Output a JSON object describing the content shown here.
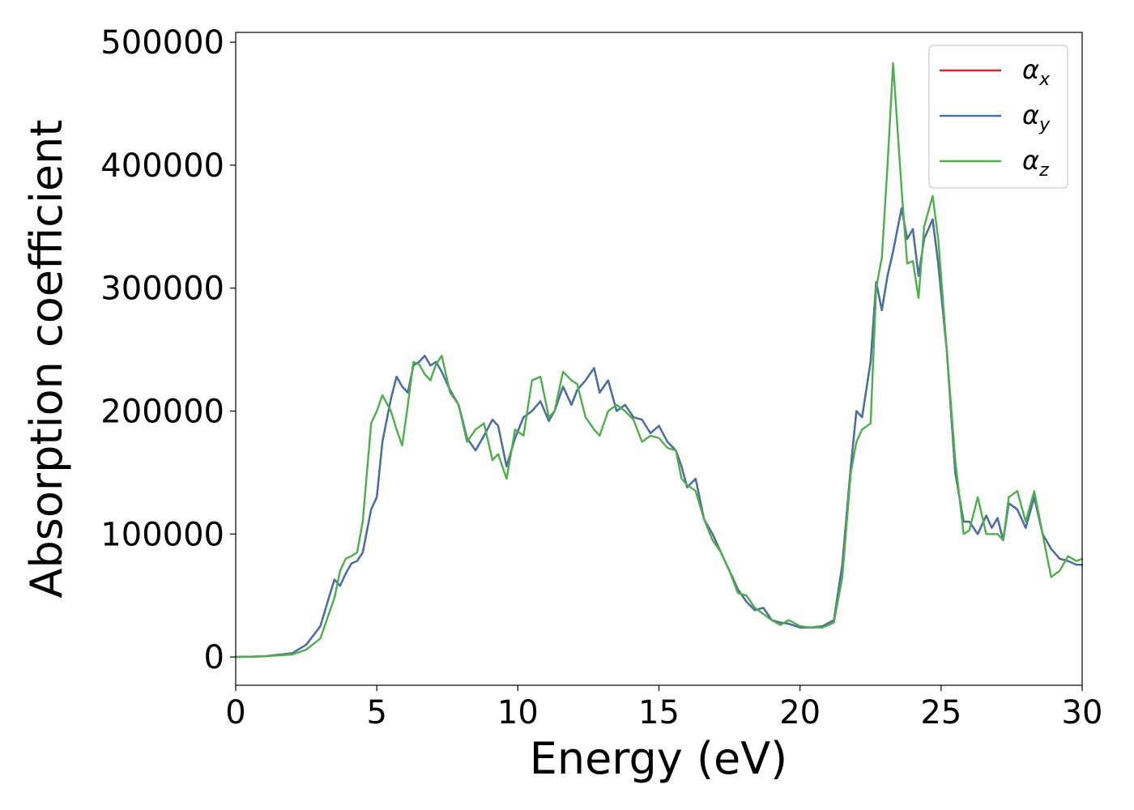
{
  "chart_data": {
    "type": "line",
    "xlabel": "Energy (eV)",
    "ylabel": "Absorption coefficient",
    "xlim": [
      0,
      30
    ],
    "ylim": [
      -23000,
      508000
    ],
    "xticks": [
      0,
      5,
      10,
      15,
      20,
      25,
      30
    ],
    "yticks": [
      0,
      100000,
      200000,
      300000,
      400000,
      500000
    ],
    "grid": false,
    "legend_position": "top-right",
    "series": [
      {
        "name": "α_x",
        "legend_symbol": "α",
        "legend_subscript": "x",
        "color": "#d62728",
        "x": [
          0,
          1,
          2,
          2.5,
          3,
          3.3,
          3.5,
          3.7,
          3.9,
          4.1,
          4.3,
          4.5,
          4.8,
          5.0,
          5.2,
          5.5,
          5.7,
          5.9,
          6.1,
          6.3,
          6.5,
          6.7,
          6.9,
          7.1,
          7.3,
          7.6,
          7.9,
          8.2,
          8.5,
          8.8,
          9.1,
          9.3,
          9.6,
          9.9,
          10.2,
          10.5,
          10.8,
          11.1,
          11.3,
          11.6,
          11.9,
          12.1,
          12.4,
          12.7,
          12.9,
          13.2,
          13.5,
          13.8,
          14.1,
          14.4,
          14.7,
          15.0,
          15.3,
          15.6,
          15.8,
          16.0,
          16.3,
          16.6,
          16.9,
          17.2,
          17.5,
          17.8,
          18.1,
          18.4,
          18.7,
          19.0,
          19.3,
          19.6,
          20.0,
          20.4,
          20.8,
          21.2,
          21.5,
          21.8,
          22.0,
          22.2,
          22.5,
          22.7,
          22.9,
          23.1,
          23.3,
          23.6,
          23.8,
          24.0,
          24.2,
          24.4,
          24.7,
          24.9,
          25.2,
          25.5,
          25.8,
          26.0,
          26.3,
          26.6,
          26.8,
          27.0,
          27.2,
          27.4,
          27.7,
          28.0,
          28.3,
          28.6,
          28.9,
          29.2,
          29.5,
          29.8,
          30.0
        ],
        "y": [
          0,
          500,
          3000,
          10000,
          25000,
          48000,
          63000,
          58000,
          68000,
          76000,
          78000,
          85000,
          120000,
          130000,
          175000,
          210000,
          228000,
          220000,
          215000,
          237000,
          240000,
          245000,
          237000,
          240000,
          232000,
          217000,
          205000,
          178000,
          168000,
          180000,
          193000,
          188000,
          155000,
          178000,
          195000,
          200000,
          208000,
          192000,
          200000,
          220000,
          205000,
          217000,
          225000,
          235000,
          215000,
          225000,
          200000,
          205000,
          195000,
          193000,
          182000,
          188000,
          175000,
          168000,
          155000,
          138000,
          145000,
          112000,
          100000,
          85000,
          70000,
          55000,
          45000,
          38000,
          40000,
          30000,
          28000,
          27000,
          24000,
          24000,
          25000,
          30000,
          75000,
          155000,
          200000,
          195000,
          240000,
          305000,
          282000,
          310000,
          330000,
          365000,
          340000,
          348000,
          310000,
          340000,
          356000,
          320000,
          250000,
          150000,
          110000,
          110000,
          100000,
          115000,
          105000,
          113000,
          95000,
          125000,
          120000,
          105000,
          130000,
          100000,
          88000,
          80000,
          78000,
          75000,
          75000
        ]
      },
      {
        "name": "α_y",
        "legend_symbol": "α",
        "legend_subscript": "y",
        "color": "#4472a8",
        "x": [
          0,
          1,
          2,
          2.5,
          3,
          3.3,
          3.5,
          3.7,
          3.9,
          4.1,
          4.3,
          4.5,
          4.8,
          5.0,
          5.2,
          5.5,
          5.7,
          5.9,
          6.1,
          6.3,
          6.5,
          6.7,
          6.9,
          7.1,
          7.3,
          7.6,
          7.9,
          8.2,
          8.5,
          8.8,
          9.1,
          9.3,
          9.6,
          9.9,
          10.2,
          10.5,
          10.8,
          11.1,
          11.3,
          11.6,
          11.9,
          12.1,
          12.4,
          12.7,
          12.9,
          13.2,
          13.5,
          13.8,
          14.1,
          14.4,
          14.7,
          15.0,
          15.3,
          15.6,
          15.8,
          16.0,
          16.3,
          16.6,
          16.9,
          17.2,
          17.5,
          17.8,
          18.1,
          18.4,
          18.7,
          19.0,
          19.3,
          19.6,
          20.0,
          20.4,
          20.8,
          21.2,
          21.5,
          21.8,
          22.0,
          22.2,
          22.5,
          22.7,
          22.9,
          23.1,
          23.3,
          23.6,
          23.8,
          24.0,
          24.2,
          24.4,
          24.7,
          24.9,
          25.2,
          25.5,
          25.8,
          26.0,
          26.3,
          26.6,
          26.8,
          27.0,
          27.2,
          27.4,
          27.7,
          28.0,
          28.3,
          28.6,
          28.9,
          29.2,
          29.5,
          29.8,
          30.0
        ],
        "y": [
          0,
          500,
          3000,
          10000,
          25000,
          48000,
          63000,
          58000,
          68000,
          76000,
          78000,
          85000,
          120000,
          130000,
          175000,
          210000,
          228000,
          220000,
          215000,
          237000,
          240000,
          245000,
          237000,
          240000,
          232000,
          217000,
          205000,
          178000,
          168000,
          180000,
          193000,
          188000,
          155000,
          178000,
          195000,
          200000,
          208000,
          192000,
          200000,
          220000,
          205000,
          217000,
          225000,
          235000,
          215000,
          225000,
          200000,
          205000,
          195000,
          193000,
          182000,
          188000,
          175000,
          168000,
          155000,
          138000,
          145000,
          112000,
          100000,
          85000,
          70000,
          55000,
          45000,
          38000,
          40000,
          30000,
          28000,
          27000,
          24000,
          24000,
          25000,
          30000,
          75000,
          155000,
          200000,
          195000,
          240000,
          305000,
          282000,
          310000,
          330000,
          365000,
          340000,
          348000,
          310000,
          340000,
          356000,
          320000,
          250000,
          150000,
          110000,
          110000,
          100000,
          115000,
          105000,
          113000,
          95000,
          125000,
          120000,
          105000,
          130000,
          100000,
          88000,
          80000,
          78000,
          75000,
          75000
        ]
      },
      {
        "name": "α_z",
        "legend_symbol": "α",
        "legend_subscript": "z",
        "color": "#4daf4a",
        "x": [
          0,
          1,
          2,
          2.5,
          3,
          3.3,
          3.5,
          3.7,
          3.9,
          4.1,
          4.3,
          4.5,
          4.8,
          5.0,
          5.2,
          5.5,
          5.7,
          5.9,
          6.1,
          6.3,
          6.5,
          6.7,
          6.9,
          7.1,
          7.3,
          7.6,
          7.9,
          8.2,
          8.5,
          8.8,
          9.1,
          9.3,
          9.6,
          9.9,
          10.2,
          10.5,
          10.8,
          11.1,
          11.3,
          11.6,
          11.9,
          12.1,
          12.4,
          12.7,
          12.9,
          13.2,
          13.5,
          13.8,
          14.1,
          14.4,
          14.7,
          15.0,
          15.3,
          15.6,
          15.8,
          16.0,
          16.3,
          16.6,
          16.9,
          17.2,
          17.5,
          17.8,
          18.1,
          18.4,
          18.7,
          19.0,
          19.3,
          19.6,
          20.0,
          20.4,
          20.8,
          21.2,
          21.5,
          21.8,
          22.0,
          22.2,
          22.5,
          22.7,
          22.9,
          23.1,
          23.3,
          23.6,
          23.8,
          24.0,
          24.2,
          24.4,
          24.7,
          24.9,
          25.2,
          25.5,
          25.8,
          26.0,
          26.3,
          26.6,
          26.8,
          27.0,
          27.2,
          27.4,
          27.7,
          28.0,
          28.3,
          28.6,
          28.9,
          29.2,
          29.5,
          29.8,
          30.0
        ],
        "y": [
          0,
          500,
          2000,
          6000,
          15000,
          35000,
          48000,
          70000,
          80000,
          82000,
          85000,
          110000,
          190000,
          200000,
          213000,
          200000,
          185000,
          172000,
          205000,
          240000,
          238000,
          230000,
          225000,
          238000,
          245000,
          215000,
          205000,
          175000,
          185000,
          190000,
          160000,
          165000,
          145000,
          185000,
          180000,
          225000,
          228000,
          195000,
          200000,
          232000,
          225000,
          222000,
          195000,
          185000,
          180000,
          200000,
          205000,
          200000,
          193000,
          175000,
          180000,
          178000,
          170000,
          168000,
          145000,
          140000,
          135000,
          112000,
          95000,
          85000,
          70000,
          52000,
          50000,
          40000,
          35000,
          30000,
          26000,
          30000,
          25000,
          24000,
          24000,
          28000,
          65000,
          150000,
          175000,
          185000,
          190000,
          300000,
          325000,
          400000,
          483000,
          380000,
          320000,
          322000,
          292000,
          350000,
          375000,
          340000,
          250000,
          160000,
          100000,
          103000,
          130000,
          100000,
          100000,
          100000,
          95000,
          130000,
          135000,
          110000,
          135000,
          100000,
          65000,
          70000,
          82000,
          78000,
          80000
        ]
      }
    ]
  }
}
